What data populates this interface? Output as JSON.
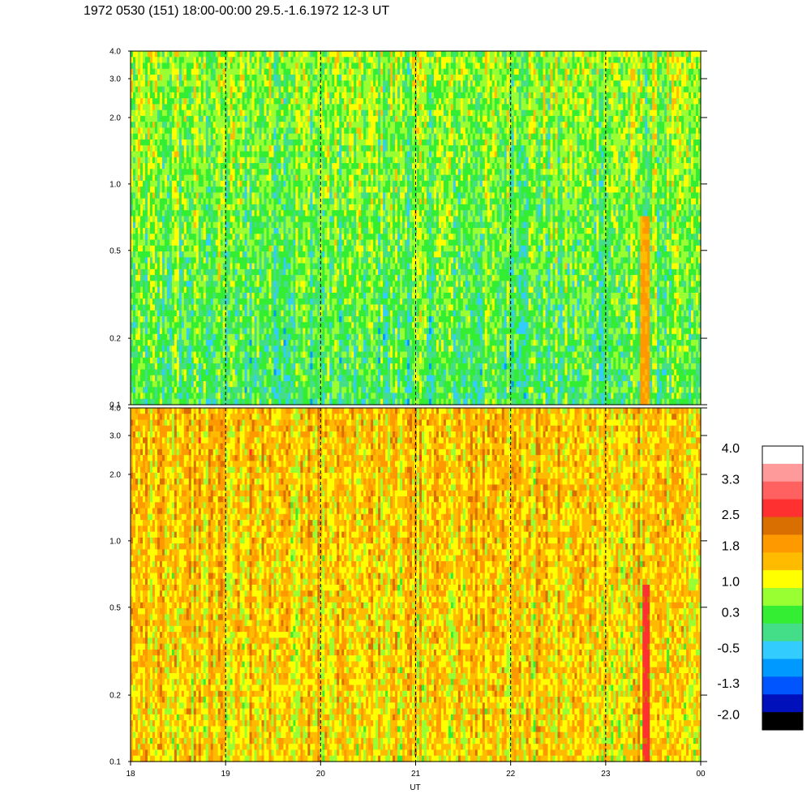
{
  "title": "1972 0530 (151) 18:00-00:00 29.5.-1.6.1972  12-3 UT",
  "chart_data": [
    {
      "type": "heatmap",
      "panel": "upper",
      "title": "",
      "xlabel": "",
      "ylabel": "",
      "x_ticks": [
        "18",
        "19",
        "20",
        "21",
        "22",
        "23",
        "00"
      ],
      "x_range": [
        18,
        24
      ],
      "y_scale": "log",
      "y_ticks": [
        "0.1",
        "0.2",
        "0.5",
        "1.0",
        "2.0",
        "3.0",
        "4.0"
      ],
      "y_tick_values": [
        0.1,
        0.2,
        0.5,
        1.0,
        2.0,
        3.0,
        4.0
      ],
      "y_range": [
        0.1,
        4.0
      ],
      "hour_gridlines": [
        19,
        20,
        21,
        22,
        23
      ],
      "dominant_level_low_freq": 0.3,
      "dominant_level_high_freq": 0.8,
      "events": [
        {
          "x_start": 23.37,
          "x_end": 23.47,
          "y_max": 0.7,
          "level": 1.8
        }
      ]
    },
    {
      "type": "heatmap",
      "panel": "lower",
      "title": "",
      "xlabel": "UT",
      "ylabel": "",
      "x_ticks": [
        "18",
        "19",
        "20",
        "21",
        "22",
        "23",
        "00"
      ],
      "x_range": [
        18,
        24
      ],
      "y_scale": "log",
      "y_ticks": [
        "0.1",
        "0.2",
        "0.5",
        "1.0",
        "2.0",
        "3.0",
        "4.0"
      ],
      "y_tick_values": [
        0.1,
        0.2,
        0.5,
        1.0,
        2.0,
        3.0,
        4.0
      ],
      "y_range": [
        0.1,
        4.0
      ],
      "hour_gridlines": [
        19,
        20,
        21,
        22,
        23
      ],
      "dominant_level_low_freq": 1.4,
      "dominant_level_high_freq": 1.6,
      "events": [
        {
          "x_start": 23.38,
          "x_end": 23.46,
          "y_max": 0.65,
          "level": 2.6
        }
      ]
    }
  ],
  "colorbar": {
    "ticks": [
      "4.0",
      "3.3",
      "2.5",
      "1.8",
      "1.0",
      "0.3",
      "-0.5",
      "-1.3",
      "-2.0"
    ],
    "tick_values": [
      4.0,
      3.3,
      2.5,
      1.8,
      1.0,
      0.3,
      -0.5,
      -1.3,
      -2.0
    ],
    "colors": [
      "#ffffff",
      "#ff9a9a",
      "#ff6060",
      "#ff3030",
      "#d86f00",
      "#ff9900",
      "#ffbb00",
      "#ffff00",
      "#99ff33",
      "#33ee33",
      "#44dd88",
      "#33ccff",
      "#0099ff",
      "#0055ff",
      "#0011bb",
      "#000000"
    ]
  }
}
